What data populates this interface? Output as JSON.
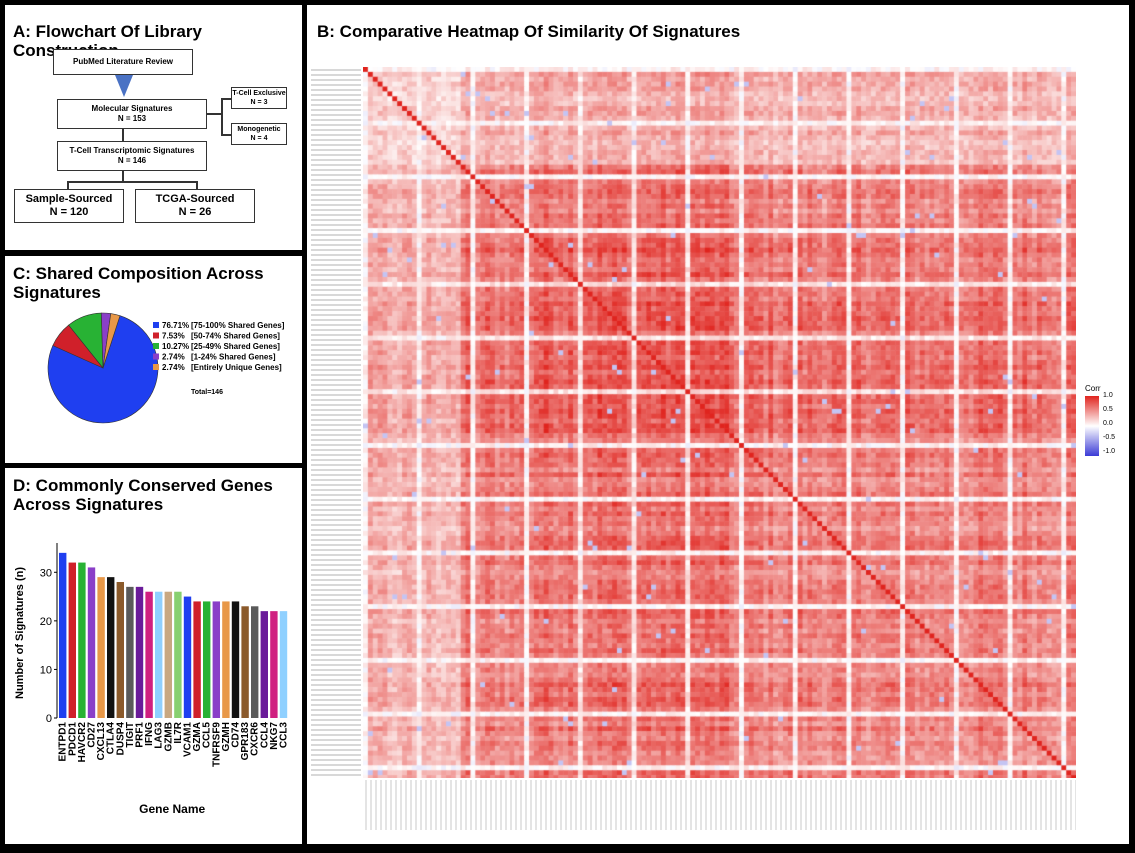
{
  "panel_a": {
    "title": "A: Flowchart Of Library Construction",
    "pubmed": "PubMed Literature Review",
    "molecular": "Molecular Signatures",
    "molecular_n": "N = 153",
    "tcell_exclusive": "T-Cell Exclusive",
    "tcell_exclusive_n": "N = 3",
    "monogenetic": "Monogenetic",
    "monogenetic_n": "N = 4",
    "tcell_tx": "T-Cell Transcriptomic Signatures",
    "tcell_tx_n": "N = 146",
    "sample_sourced": "Sample-Sourced",
    "sample_sourced_n": "N = 120",
    "tcga_sourced": "TCGA-Sourced",
    "tcga_sourced_n": "N = 26",
    "arrow_color": "#4a72c4"
  },
  "panel_c": {
    "title_line1": "C: Shared Composition Across",
    "title_line2": "Signatures",
    "total": "Total=146"
  },
  "panel_d": {
    "title_line1": "D: Commonly Conserved Genes",
    "title_line2": "Across Signatures"
  },
  "panel_b": {
    "title": "B: Comparative Heatmap Of Similarity Of Signatures"
  },
  "chart_data": [
    {
      "type": "pie",
      "labels": [
        "[75-100% Shared Genes]",
        "[50-74% Shared Genes]",
        "[25-49% Shared Genes]",
        "[1-24% Shared Genes]",
        "[Entirely Unique Genes]"
      ],
      "percent_labels": [
        "76.71%",
        "7.53%",
        "10.27%",
        "2.74%",
        "2.74%"
      ],
      "values": [
        76.71,
        7.53,
        10.27,
        2.74,
        2.74
      ],
      "colors": [
        "#1f3ff0",
        "#d0202a",
        "#28b234",
        "#8a3fc8",
        "#e89848"
      ]
    },
    {
      "type": "bar",
      "xlabel": "Gene Name",
      "ylabel": "Number of Signatures (n)",
      "ylim": [
        0,
        35
      ],
      "yticks": [
        0,
        10,
        20,
        30
      ],
      "categories": [
        "ENTPD1",
        "PDCD1",
        "HAVCR2",
        "CD27",
        "CXCL13",
        "CTLA4",
        "DUSP4",
        "TIGIT",
        "PRF1",
        "IFNG",
        "LAG3",
        "GZMB",
        "IL7R",
        "VCAM1",
        "GZMA",
        "CCL5",
        "TNFRSF9",
        "GZMH",
        "CD74",
        "GPR183",
        "CXCR6",
        "CCL4",
        "NKG7",
        "CCL3"
      ],
      "values": [
        34,
        32,
        32,
        31,
        29,
        29,
        28,
        27,
        27,
        26,
        26,
        26,
        26,
        25,
        24,
        24,
        24,
        24,
        24,
        23,
        23,
        22,
        22,
        22
      ],
      "colors": [
        "#1f3ff0",
        "#d0202a",
        "#28b234",
        "#8a3fc8",
        "#e89848",
        "#111111",
        "#8b5a2b",
        "#5a5a5a",
        "#6a1b9a",
        "#d02080",
        "#8fd0ff",
        "#c8a882",
        "#88d070",
        "#1f3ff0",
        "#d0202a",
        "#28b234",
        "#8a3fc8",
        "#e89848",
        "#111111",
        "#8b5a2b",
        "#5a5a5a",
        "#6a1b9a",
        "#d02080",
        "#8fd0ff"
      ]
    },
    {
      "type": "heatmap",
      "legend_title": "Corr",
      "legend_ticks": [
        "1.0",
        "0.5",
        "0.0",
        "-0.5",
        "-1.0"
      ],
      "colorscale": [
        "#3b3bd6",
        "#ffffff",
        "#e0241e"
      ],
      "zlim": [
        -1,
        1
      ]
    }
  ]
}
